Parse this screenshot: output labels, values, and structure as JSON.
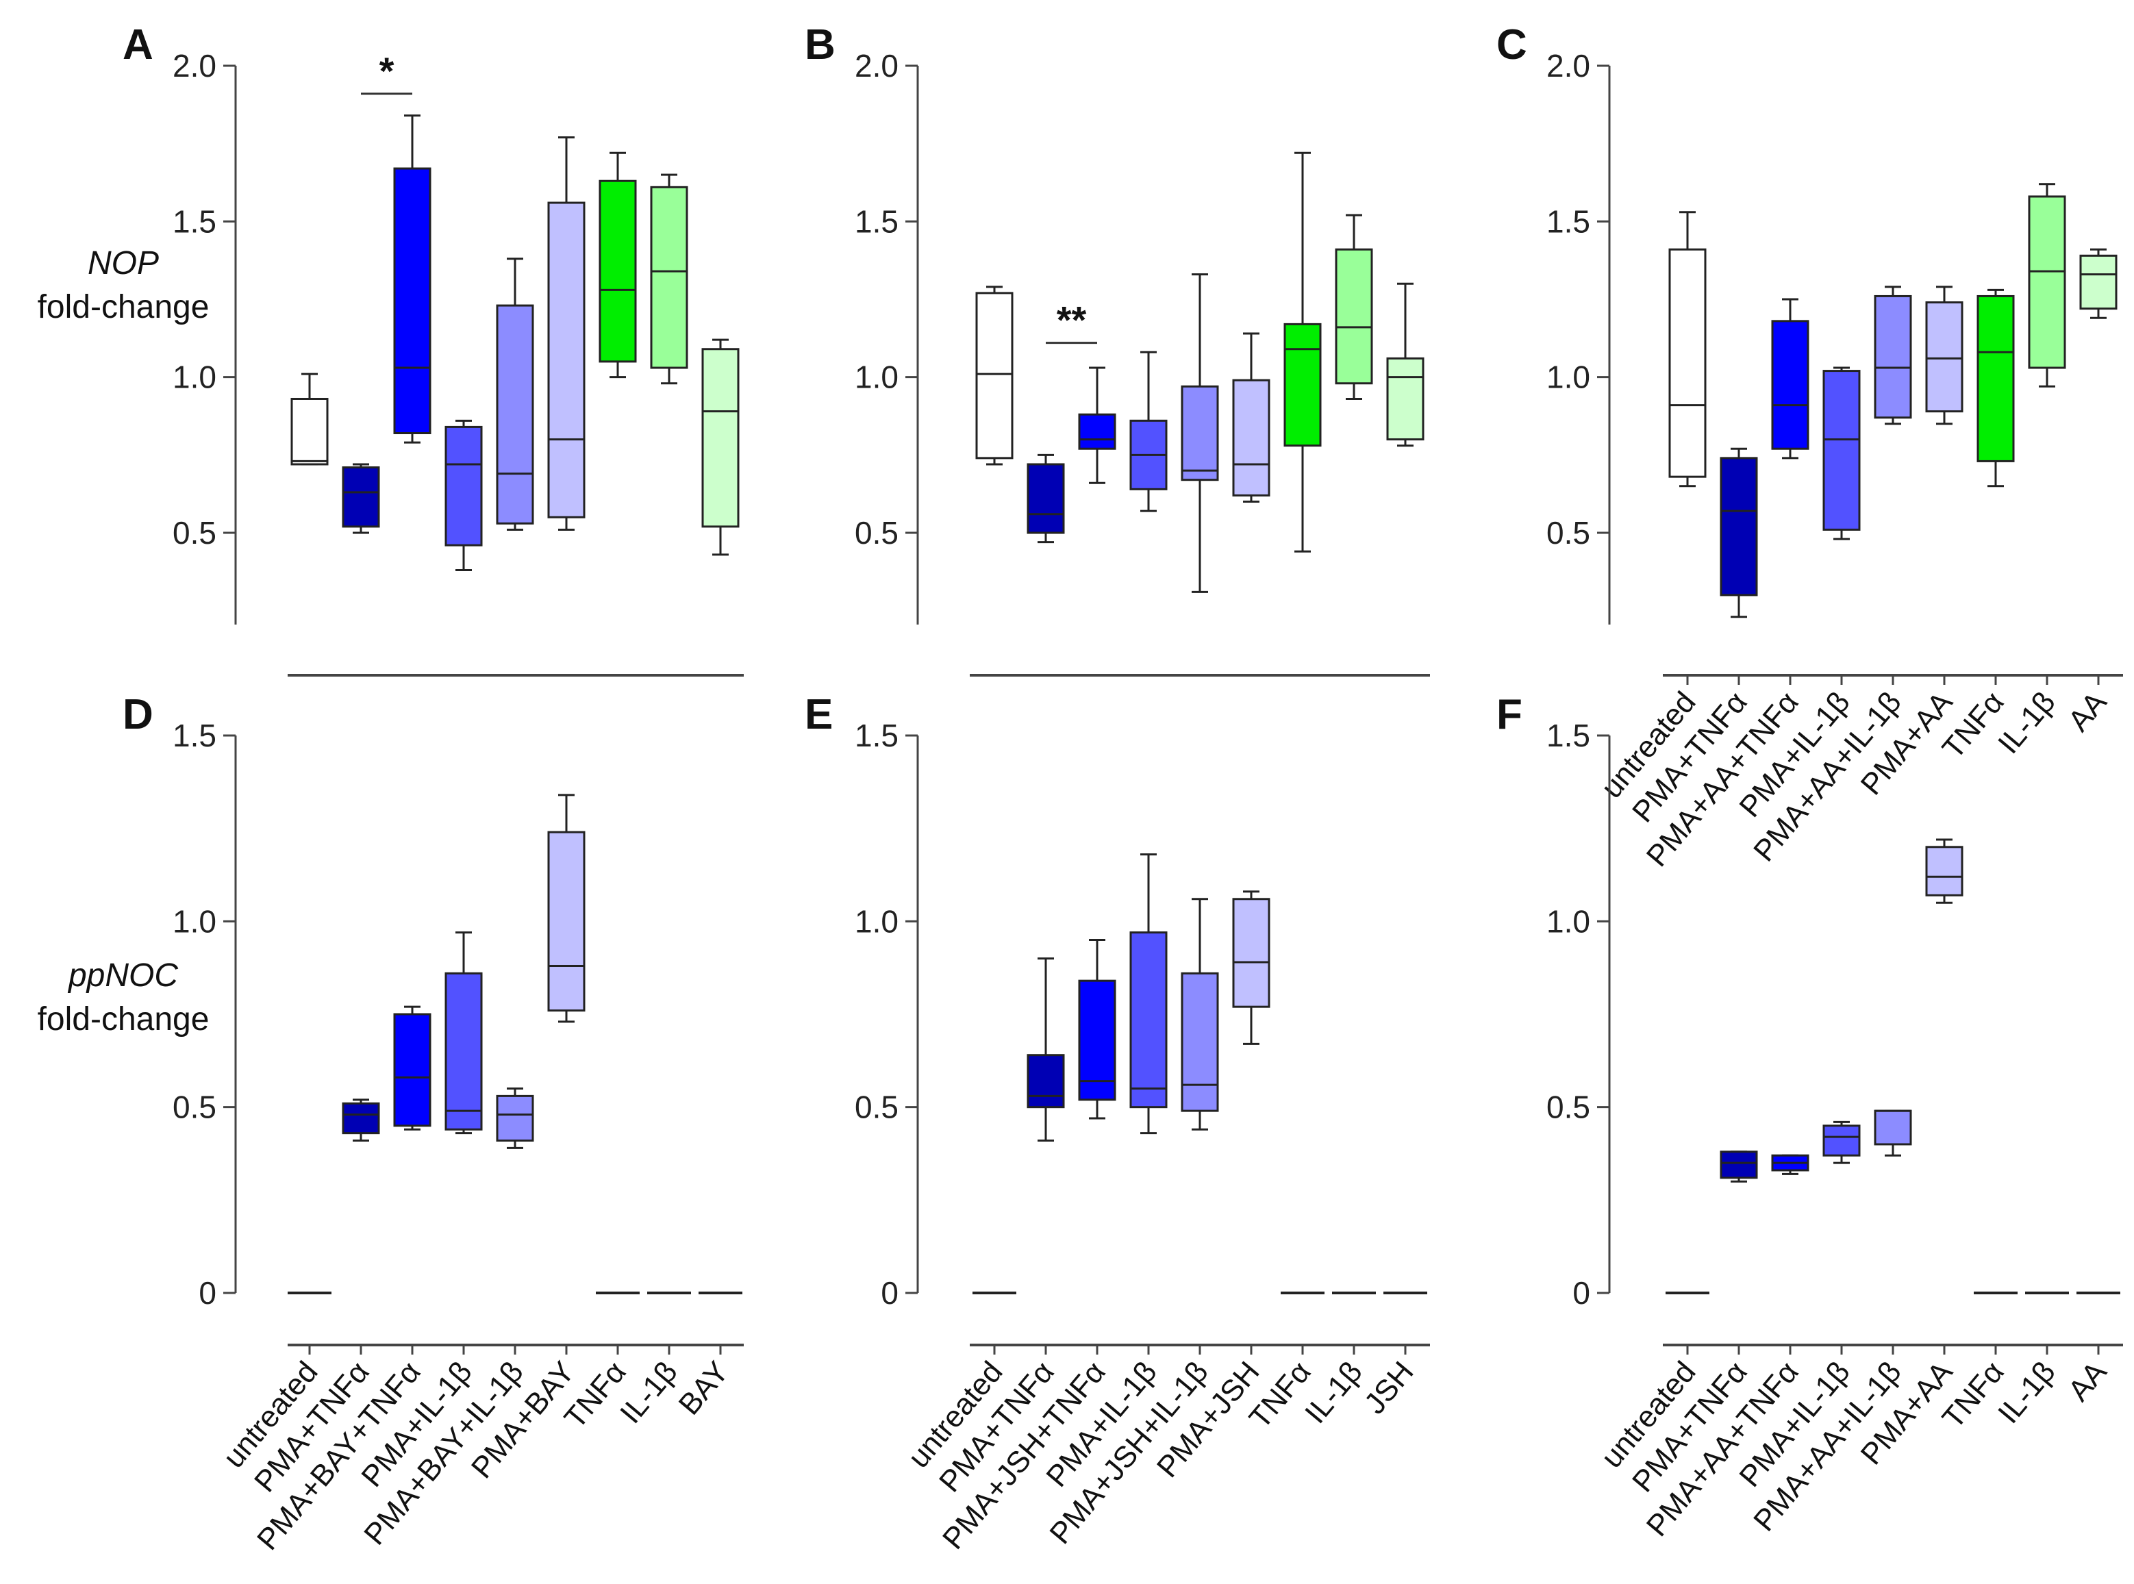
{
  "chart_data": [
    {
      "type": "box",
      "panel": "A",
      "ylabel_gene": "NOP",
      "ylabel": "fold-change",
      "ylim": [
        0.2,
        2.0
      ],
      "yticks": [
        "2.0",
        "1.5",
        "1.0",
        "0.5"
      ],
      "categories": [
        "untreated",
        "PMA+TNFα",
        "PMA+BAY+TNFα",
        "PMA+IL-1β",
        "PMA+BAY+IL-1β",
        "PMA+BAY",
        "TNFα",
        "IL-1β",
        "BAY"
      ],
      "boxes": [
        [
          0.72,
          0.72,
          0.73,
          0.93,
          1.01
        ],
        [
          0.5,
          0.52,
          0.63,
          0.71,
          0.72
        ],
        [
          0.79,
          0.82,
          1.03,
          1.67,
          1.84
        ],
        [
          0.38,
          0.46,
          0.72,
          0.84,
          0.86
        ],
        [
          0.51,
          0.53,
          0.69,
          1.23,
          1.38
        ],
        [
          0.51,
          0.55,
          0.8,
          1.56,
          1.77
        ],
        [
          1.0,
          1.05,
          1.28,
          1.63,
          1.72
        ],
        [
          0.98,
          1.03,
          1.34,
          1.61,
          1.65
        ],
        [
          0.43,
          0.52,
          0.89,
          1.09,
          1.12
        ]
      ],
      "significance": [
        {
          "from": 1,
          "to": 2,
          "label": "*",
          "y": 1.91
        }
      ]
    },
    {
      "type": "box",
      "panel": "B",
      "ylim": [
        0.2,
        2.0
      ],
      "yticks": [
        "2.0",
        "1.5",
        "1.0",
        "0.5"
      ],
      "categories": [
        "untreated",
        "PMA+TNFα",
        "PMA+JSH+TNFα",
        "PMA+IL-1β",
        "PMA+JSH+IL-1β",
        "PMA+JSH",
        "TNFα",
        "IL-1β",
        "JSH"
      ],
      "boxes": [
        [
          0.72,
          0.74,
          1.01,
          1.27,
          1.29
        ],
        [
          0.47,
          0.5,
          0.56,
          0.72,
          0.75
        ],
        [
          0.66,
          0.77,
          0.8,
          0.88,
          1.03
        ],
        [
          0.57,
          0.64,
          0.75,
          0.86,
          1.08
        ],
        [
          0.31,
          0.67,
          0.7,
          0.97,
          1.33
        ],
        [
          0.6,
          0.62,
          0.72,
          0.99,
          1.14
        ],
        [
          0.44,
          0.78,
          1.09,
          1.17,
          1.72
        ],
        [
          0.93,
          0.98,
          1.16,
          1.41,
          1.52
        ],
        [
          0.78,
          0.8,
          1.0,
          1.06,
          1.3
        ]
      ],
      "significance": [
        {
          "from": 1,
          "to": 2,
          "label": "**",
          "y": 1.11
        }
      ]
    },
    {
      "type": "box",
      "panel": "C",
      "ylim": [
        0.2,
        2.0
      ],
      "yticks": [
        "2.0",
        "1.5",
        "1.0",
        "0.5"
      ],
      "categories": [
        "untreated",
        "PMA+TNFα",
        "PMA+AA+TNFα",
        "PMA+IL-1β",
        "PMA+AA+IL-1β",
        "PMA+AA",
        "TNFα",
        "IL-1β",
        "AA"
      ],
      "boxes": [
        [
          0.65,
          0.68,
          0.91,
          1.41,
          1.53
        ],
        [
          0.23,
          0.3,
          0.57,
          0.74,
          0.77
        ],
        [
          0.74,
          0.77,
          0.91,
          1.18,
          1.25
        ],
        [
          0.48,
          0.51,
          0.8,
          1.02,
          1.03
        ],
        [
          0.85,
          0.87,
          1.03,
          1.26,
          1.29
        ],
        [
          0.85,
          0.89,
          1.06,
          1.24,
          1.29
        ],
        [
          0.65,
          0.73,
          1.08,
          1.26,
          1.28
        ],
        [
          0.97,
          1.03,
          1.34,
          1.58,
          1.62
        ],
        [
          1.19,
          1.22,
          1.33,
          1.39,
          1.41
        ]
      ],
      "significance": []
    },
    {
      "type": "box",
      "panel": "D",
      "ylabel_gene": "ppNOC",
      "ylabel": "fold-change",
      "ylim": [
        0,
        1.5
      ],
      "yticks": [
        "1.5",
        "1.0",
        "0.5",
        "0"
      ],
      "categories": [
        "untreated",
        "PMA+TNFα",
        "PMA+BAY+TNFα",
        "PMA+IL-1β",
        "PMA+BAY+IL-1β",
        "PMA+BAY",
        "TNFα",
        "IL-1β",
        "BAY"
      ],
      "boxes": [
        [
          0,
          0,
          0,
          0,
          0
        ],
        [
          0.41,
          0.43,
          0.48,
          0.51,
          0.52
        ],
        [
          0.44,
          0.45,
          0.58,
          0.75,
          0.77
        ],
        [
          0.43,
          0.44,
          0.49,
          0.86,
          0.97
        ],
        [
          0.39,
          0.41,
          0.48,
          0.53,
          0.55
        ],
        [
          0.73,
          0.76,
          0.88,
          1.24,
          1.34
        ],
        [
          0,
          0,
          0,
          0,
          0
        ],
        [
          0,
          0,
          0,
          0,
          0
        ],
        [
          0,
          0,
          0,
          0,
          0
        ]
      ],
      "significance": []
    },
    {
      "type": "box",
      "panel": "E",
      "ylim": [
        0,
        1.5
      ],
      "yticks": [
        "1.5",
        "1.0",
        "0.5",
        "0"
      ],
      "categories": [
        "untreated",
        "PMA+TNFα",
        "PMA+JSH+TNFα",
        "PMA+IL-1β",
        "PMA+JSH+IL-1β",
        "PMA+JSH",
        "TNFα",
        "IL-1β",
        "JSH"
      ],
      "boxes": [
        [
          0,
          0,
          0,
          0,
          0
        ],
        [
          0.41,
          0.5,
          0.53,
          0.64,
          0.9
        ],
        [
          0.47,
          0.52,
          0.57,
          0.84,
          0.95
        ],
        [
          0.43,
          0.5,
          0.55,
          0.97,
          1.18
        ],
        [
          0.44,
          0.49,
          0.56,
          0.86,
          1.06
        ],
        [
          0.67,
          0.77,
          0.89,
          1.06,
          1.08
        ],
        [
          0,
          0,
          0,
          0,
          0
        ],
        [
          0,
          0,
          0,
          0,
          0
        ],
        [
          0,
          0,
          0,
          0,
          0
        ]
      ],
      "significance": []
    },
    {
      "type": "box",
      "panel": "F",
      "ylim": [
        0,
        1.5
      ],
      "yticks": [
        "1.5",
        "1.0",
        "0.5",
        "0"
      ],
      "categories": [
        "untreated",
        "PMA+TNFα",
        "PMA+AA+TNFα",
        "PMA+IL-1β",
        "PMA+AA+IL-1β",
        "PMA+AA",
        "TNFα",
        "IL-1β",
        "AA"
      ],
      "boxes": [
        [
          0,
          0,
          0,
          0,
          0
        ],
        [
          0.3,
          0.31,
          0.35,
          0.38,
          0.38
        ],
        [
          0.32,
          0.33,
          0.35,
          0.37,
          0.37
        ],
        [
          0.35,
          0.37,
          0.42,
          0.45,
          0.46
        ],
        [
          0.37,
          0.4,
          0.49,
          0.49,
          0.49
        ],
        [
          1.05,
          1.07,
          1.12,
          1.2,
          1.22
        ],
        [
          0,
          0,
          0,
          0,
          0
        ],
        [
          0,
          0,
          0,
          0,
          0
        ],
        [
          0,
          0,
          0,
          0,
          0
        ]
      ],
      "significance": []
    }
  ],
  "colors": [
    "#ffffff",
    "#0000b4",
    "#0000ff",
    "#5252ff",
    "#8c8cff",
    "#c0c0ff",
    "#00ee00",
    "#99ff99",
    "#ccffcc"
  ]
}
